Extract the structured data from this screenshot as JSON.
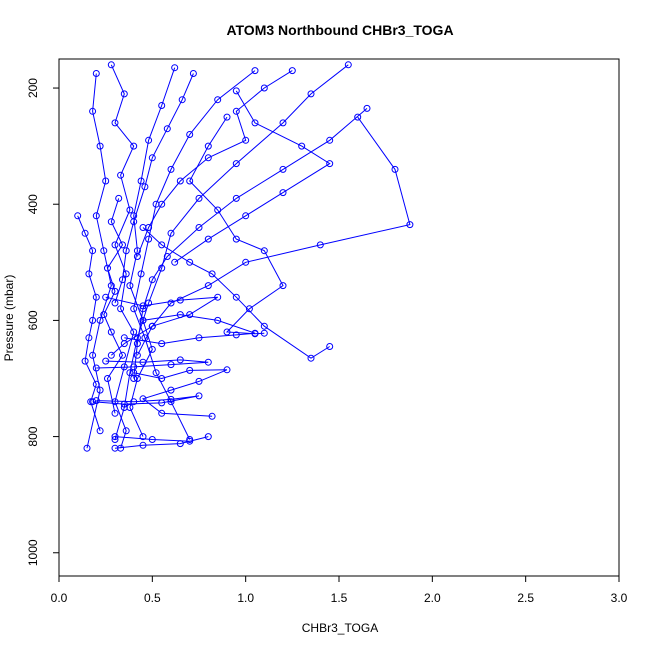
{
  "chart_data": {
    "type": "line",
    "title": "ATOM3 Northbound CHBr3_TOGA",
    "xlabel": "CHBr3_TOGA",
    "ylabel": "Pressure (mbar)",
    "xlim": [
      0,
      3
    ],
    "ylim": [
      1040,
      150
    ],
    "y_reversed": true,
    "grid": false,
    "line_color": "#0000ff",
    "point_style": "open-circle",
    "x_ticks": [
      0.0,
      0.5,
      1.0,
      1.5,
      2.0,
      2.5,
      3.0
    ],
    "x_tick_labels": [
      "0.0",
      "0.5",
      "1.0",
      "1.5",
      "2.0",
      "2.5",
      "3.0"
    ],
    "y_ticks": [
      200,
      400,
      600,
      800,
      1000
    ],
    "y_tick_labels": [
      "200",
      "400",
      "600",
      "800",
      "1000"
    ],
    "series": [
      {
        "points": [
          [
            0.28,
            160
          ],
          [
            0.35,
            210
          ],
          [
            0.3,
            260
          ],
          [
            0.4,
            300
          ],
          [
            0.33,
            350
          ],
          [
            0.38,
            410
          ],
          [
            0.3,
            470
          ],
          [
            0.36,
            520
          ],
          [
            0.33,
            580
          ],
          [
            0.4,
            620
          ],
          [
            0.35,
            680
          ],
          [
            0.3,
            740
          ],
          [
            0.36,
            790
          ],
          [
            0.33,
            820
          ]
        ]
      },
      {
        "points": [
          [
            0.62,
            165
          ],
          [
            0.55,
            230
          ],
          [
            0.48,
            290
          ],
          [
            0.44,
            360
          ],
          [
            0.4,
            420
          ],
          [
            0.42,
            480
          ],
          [
            0.38,
            540
          ],
          [
            0.45,
            600
          ],
          [
            0.5,
            650
          ],
          [
            0.42,
            700
          ],
          [
            0.38,
            750
          ],
          [
            0.45,
            800
          ]
        ]
      },
      {
        "points": [
          [
            1.05,
            170
          ],
          [
            0.85,
            220
          ],
          [
            0.7,
            280
          ],
          [
            0.6,
            340
          ],
          [
            0.52,
            400
          ],
          [
            0.48,
            460
          ],
          [
            0.44,
            520
          ],
          [
            0.4,
            580
          ],
          [
            0.46,
            630
          ],
          [
            0.52,
            690
          ],
          [
            0.6,
            740
          ],
          [
            0.7,
            805
          ]
        ]
      },
      {
        "points": [
          [
            1.55,
            160
          ],
          [
            1.35,
            210
          ],
          [
            1.2,
            260
          ],
          [
            0.95,
            330
          ],
          [
            0.75,
            390
          ],
          [
            0.6,
            450
          ],
          [
            0.55,
            510
          ],
          [
            0.48,
            570
          ],
          [
            0.42,
            630
          ],
          [
            0.38,
            690
          ],
          [
            0.35,
            750
          ],
          [
            0.3,
            805
          ]
        ]
      },
      {
        "points": [
          [
            0.2,
            175
          ],
          [
            0.18,
            240
          ],
          [
            0.22,
            300
          ],
          [
            0.25,
            360
          ],
          [
            0.2,
            420
          ],
          [
            0.24,
            480
          ],
          [
            0.28,
            540
          ],
          [
            0.22,
            600
          ],
          [
            0.18,
            660
          ],
          [
            0.22,
            720
          ],
          [
            0.15,
            820
          ]
        ]
      },
      {
        "points": [
          [
            0.1,
            420
          ],
          [
            0.14,
            450
          ],
          [
            0.18,
            480
          ],
          [
            0.16,
            520
          ],
          [
            0.2,
            560
          ],
          [
            0.18,
            600
          ],
          [
            0.16,
            630
          ],
          [
            0.14,
            670
          ],
          [
            0.2,
            710
          ],
          [
            0.17,
            740
          ],
          [
            0.22,
            790
          ]
        ]
      },
      {
        "points": [
          [
            1.65,
            235
          ],
          [
            1.45,
            290
          ],
          [
            1.2,
            340
          ],
          [
            0.95,
            390
          ],
          [
            0.75,
            440
          ],
          [
            0.58,
            490
          ],
          [
            0.5,
            530
          ],
          [
            0.45,
            580
          ],
          [
            0.42,
            640
          ],
          [
            0.4,
            700
          ]
        ]
      },
      {
        "points": [
          [
            1.6,
            250
          ],
          [
            1.8,
            340
          ],
          [
            1.88,
            435
          ],
          [
            1.4,
            470
          ],
          [
            1.0,
            500
          ],
          [
            0.8,
            540
          ],
          [
            0.6,
            570
          ],
          [
            0.5,
            610
          ],
          [
            0.42,
            660
          ]
        ]
      },
      {
        "points": [
          [
            0.9,
            250
          ],
          [
            0.8,
            300
          ],
          [
            0.7,
            360
          ],
          [
            0.85,
            410
          ],
          [
            0.95,
            460
          ],
          [
            1.1,
            480
          ],
          [
            1.2,
            540
          ],
          [
            1.02,
            580
          ],
          [
            0.9,
            620
          ],
          [
            1.05,
            623
          ],
          [
            1.1,
            622
          ]
        ]
      },
      {
        "points": [
          [
            0.35,
            630
          ],
          [
            0.55,
            640
          ],
          [
            0.75,
            630
          ],
          [
            0.95,
            625
          ],
          [
            1.05,
            622
          ],
          [
            0.85,
            600
          ],
          [
            0.65,
            590
          ],
          [
            0.45,
            600
          ]
        ]
      },
      {
        "points": [
          [
            1.45,
            645
          ],
          [
            1.35,
            665
          ],
          [
            1.1,
            610
          ],
          [
            0.95,
            560
          ],
          [
            0.82,
            520
          ],
          [
            0.7,
            500
          ],
          [
            0.55,
            470
          ],
          [
            0.45,
            440
          ]
        ]
      },
      {
        "points": [
          [
            0.25,
            670
          ],
          [
            0.45,
            672
          ],
          [
            0.65,
            668
          ],
          [
            0.8,
            672
          ],
          [
            0.6,
            676
          ],
          [
            0.4,
            680
          ],
          [
            0.2,
            682
          ]
        ]
      },
      {
        "points": [
          [
            0.2,
            738
          ],
          [
            0.4,
            740
          ],
          [
            0.6,
            736
          ],
          [
            0.75,
            730
          ],
          [
            0.55,
            742
          ],
          [
            0.35,
            744
          ],
          [
            0.18,
            740
          ]
        ]
      },
      {
        "points": [
          [
            0.3,
            800
          ],
          [
            0.5,
            805
          ],
          [
            0.7,
            808
          ],
          [
            0.8,
            800
          ],
          [
            0.65,
            812
          ],
          [
            0.45,
            815
          ],
          [
            0.3,
            820
          ]
        ]
      },
      {
        "points": [
          [
            0.4,
            690
          ],
          [
            0.55,
            700
          ],
          [
            0.7,
            686
          ],
          [
            0.9,
            685
          ],
          [
            0.75,
            705
          ],
          [
            0.6,
            720
          ],
          [
            0.45,
            735
          ],
          [
            0.55,
            760
          ],
          [
            0.82,
            765
          ]
        ]
      },
      {
        "points": [
          [
            0.25,
            560
          ],
          [
            0.45,
            575
          ],
          [
            0.65,
            565
          ],
          [
            0.85,
            560
          ],
          [
            0.7,
            590
          ],
          [
            0.5,
            610
          ],
          [
            0.35,
            640
          ],
          [
            0.28,
            660
          ]
        ]
      },
      {
        "points": [
          [
            1.25,
            170
          ],
          [
            1.1,
            200
          ],
          [
            0.95,
            240
          ],
          [
            1.0,
            290
          ],
          [
            0.8,
            320
          ],
          [
            0.65,
            360
          ],
          [
            0.55,
            400
          ],
          [
            0.48,
            440
          ],
          [
            0.42,
            490
          ]
        ]
      },
      {
        "points": [
          [
            0.72,
            175
          ],
          [
            0.66,
            220
          ],
          [
            0.58,
            270
          ],
          [
            0.5,
            320
          ],
          [
            0.46,
            370
          ],
          [
            0.4,
            430
          ],
          [
            0.36,
            480
          ],
          [
            0.34,
            530
          ],
          [
            0.3,
            570
          ]
        ]
      },
      {
        "points": [
          [
            0.95,
            205
          ],
          [
            1.05,
            260
          ],
          [
            1.3,
            300
          ],
          [
            1.45,
            330
          ],
          [
            1.2,
            380
          ],
          [
            1.0,
            420
          ],
          [
            0.8,
            460
          ],
          [
            0.62,
            500
          ]
        ]
      },
      {
        "points": [
          [
            0.32,
            390
          ],
          [
            0.28,
            430
          ],
          [
            0.34,
            470
          ],
          [
            0.26,
            510
          ],
          [
            0.3,
            550
          ],
          [
            0.24,
            590
          ],
          [
            0.28,
            620
          ],
          [
            0.34,
            660
          ],
          [
            0.26,
            700
          ],
          [
            0.3,
            760
          ]
        ]
      }
    ]
  }
}
